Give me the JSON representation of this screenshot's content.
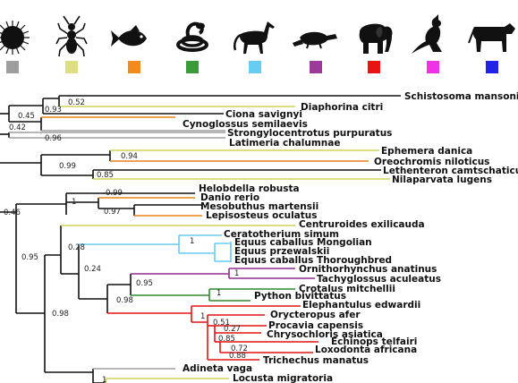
{
  "legend": [
    {
      "icon": "sea-urchin-icon",
      "color": "#9e9e9e"
    },
    {
      "icon": "insect-icon",
      "color": "#dede82"
    },
    {
      "icon": "fish-icon",
      "color": "#f28a1e"
    },
    {
      "icon": "snake-icon",
      "color": "#3a9a3a"
    },
    {
      "icon": "horse-icon",
      "color": "#66ccf2"
    },
    {
      "icon": "platypus-icon",
      "color": "#9b3a9b"
    },
    {
      "icon": "elephant-icon",
      "color": "#e81414"
    },
    {
      "icon": "kangaroo-icon",
      "color": "#f032e6"
    },
    {
      "icon": "cow-icon",
      "color": "#2222e6"
    }
  ],
  "taxa": [
    "Schistosoma mansoni (RT",
    "Diaphorina citri",
    "Ciona savignyi",
    "Cynoglossus semilaevis",
    "Strongylocentrotus purpuratus",
    "Latimeria chalumnae",
    "Ephemera danica",
    "Oreochromis niloticus",
    "Lethenteron camtschaticum",
    "Nilaparvata lugens",
    "Helobdella robusta",
    "Danio rerio",
    "Mesobuthus martensii",
    "Lepisosteus oculatus",
    "Centruroides exilicauda",
    "Ceratotherium simum",
    "Equus caballus Mongolian",
    "Equus przewalskii",
    "Equus caballus Thoroughbred",
    "Ornithorhynchus anatinus",
    "Tachyglossus aculeatus",
    "Crotalus mitchellii",
    "Python bivittatus",
    "Elephantulus edwardii",
    "Orycteropus afer",
    "Procavia capensis",
    "Chrysochloris asiatica",
    "Echinops telfairi",
    "Loxodonta africana",
    "Trichechus manatus",
    "Adineta vaga",
    "Locusta migratoria"
  ],
  "supports": [
    "0.52",
    "0.93",
    "0.45",
    "0.42",
    "0.96",
    "0.94",
    "0.99",
    "0.85",
    "0.99",
    "1",
    "0.97",
    "0.46",
    "0.95",
    "1",
    "0.28",
    "0.24",
    "1",
    "0.95",
    "1",
    "0.98",
    "1",
    "0.51",
    "0.27",
    "0.85",
    "0.72",
    "0.88",
    "0.98",
    "1"
  ]
}
